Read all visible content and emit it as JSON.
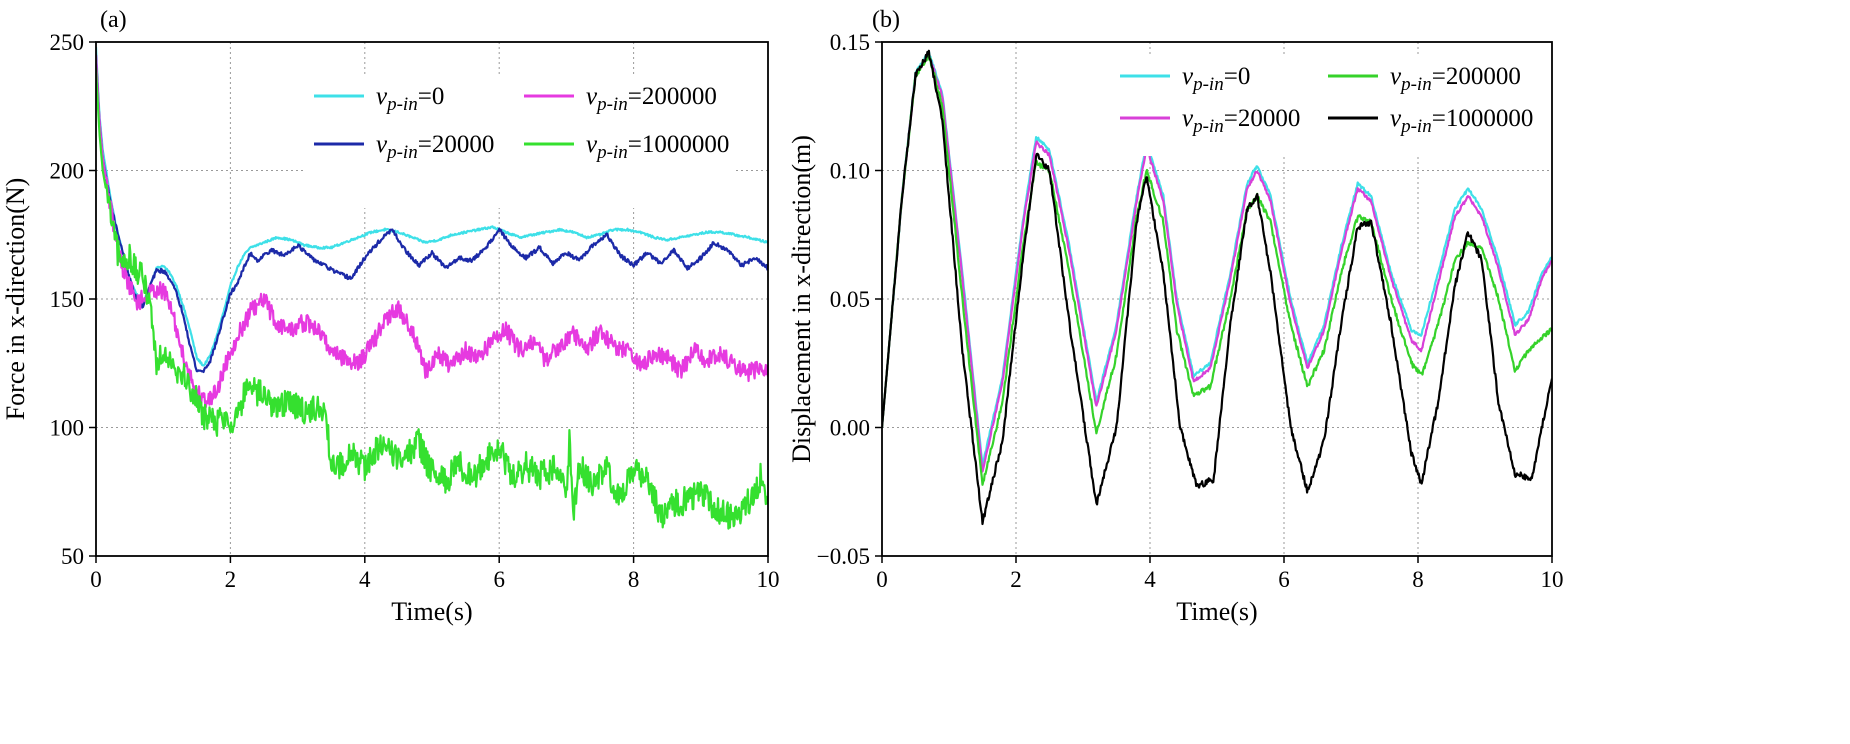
{
  "chart_data": [
    {
      "type": "line",
      "panel_label": "(a)",
      "xlabel": "Time(s)",
      "ylabel": "Force in x-direction(N)",
      "xlim": [
        0,
        10
      ],
      "ylim": [
        50,
        250
      ],
      "xticks": [
        "0",
        "2",
        "4",
        "6",
        "8",
        "10"
      ],
      "yticks": [
        "50",
        "100",
        "150",
        "200",
        "250"
      ],
      "grid": true,
      "legend_position": "top-right",
      "legend_columns": 2,
      "series": [
        {
          "name": "v_p-in=0",
          "legend_var": "v",
          "legend_sub": "p-in",
          "legend_value": "=0",
          "color": "#3ee0e8",
          "noise": 0.4,
          "x": [
            0,
            0.05,
            0.1,
            0.2,
            0.3,
            0.4,
            0.5,
            0.6,
            0.7,
            0.8,
            0.9,
            1.0,
            1.1,
            1.2,
            1.3,
            1.4,
            1.5,
            1.6,
            1.7,
            1.8,
            1.9,
            2.0,
            2.1,
            2.2,
            2.3,
            2.5,
            2.7,
            2.9,
            3.1,
            3.3,
            3.5,
            3.7,
            3.9,
            4.1,
            4.3,
            4.5,
            4.7,
            4.9,
            5.1,
            5.3,
            5.5,
            5.7,
            5.9,
            6.1,
            6.3,
            6.5,
            6.7,
            6.9,
            7.1,
            7.3,
            7.5,
            7.7,
            7.9,
            8.1,
            8.3,
            8.5,
            8.7,
            8.9,
            9.1,
            9.3,
            9.5,
            9.7,
            10.0
          ],
          "y": [
            248,
            222,
            208,
            192,
            178,
            168,
            158,
            152,
            148,
            155,
            162,
            163,
            160,
            155,
            147,
            138,
            127,
            124,
            128,
            136,
            145,
            155,
            162,
            167,
            170,
            172,
            174,
            173,
            171,
            170,
            170,
            172,
            174,
            176,
            177,
            176,
            174,
            172,
            173,
            175,
            176,
            177,
            178,
            176,
            174,
            175,
            176,
            177,
            176,
            174,
            175,
            177,
            177,
            176,
            174,
            173,
            174,
            175,
            176,
            176,
            175,
            174,
            172
          ]
        },
        {
          "name": "v_p-in=20000",
          "legend_var": "v",
          "legend_sub": "p-in",
          "legend_value": "=20000",
          "color": "#1c2aa8",
          "noise": 0.8,
          "x": [
            0,
            0.05,
            0.1,
            0.2,
            0.3,
            0.4,
            0.5,
            0.6,
            0.7,
            0.8,
            0.9,
            1.0,
            1.1,
            1.2,
            1.3,
            1.4,
            1.5,
            1.6,
            1.7,
            1.8,
            1.9,
            2.0,
            2.1,
            2.2,
            2.3,
            2.4,
            2.6,
            2.8,
            3.0,
            3.2,
            3.4,
            3.6,
            3.8,
            4.0,
            4.2,
            4.4,
            4.6,
            4.8,
            5.0,
            5.2,
            5.4,
            5.6,
            5.8,
            6.0,
            6.2,
            6.4,
            6.6,
            6.8,
            7.0,
            7.2,
            7.4,
            7.6,
            7.8,
            8.0,
            8.2,
            8.4,
            8.6,
            8.8,
            9.0,
            9.2,
            9.4,
            9.6,
            9.8,
            10.0
          ],
          "y": [
            245,
            220,
            205,
            190,
            178,
            168,
            158,
            150,
            147,
            155,
            161,
            161,
            158,
            152,
            144,
            132,
            122,
            122,
            126,
            134,
            143,
            152,
            156,
            162,
            168,
            165,
            169,
            167,
            171,
            166,
            163,
            160,
            158,
            166,
            172,
            177,
            169,
            163,
            168,
            162,
            166,
            165,
            170,
            177,
            170,
            166,
            170,
            164,
            168,
            165,
            171,
            175,
            167,
            163,
            168,
            164,
            169,
            162,
            166,
            172,
            169,
            163,
            166,
            162
          ]
        },
        {
          "name": "v_p-in=200000",
          "legend_var": "v",
          "legend_sub": "p-in",
          "legend_value": "=200000",
          "color": "#e63ae0",
          "noise": 3.5,
          "x": [
            0,
            0.05,
            0.1,
            0.2,
            0.3,
            0.4,
            0.5,
            0.6,
            0.7,
            0.8,
            0.9,
            1.0,
            1.1,
            1.2,
            1.3,
            1.4,
            1.5,
            1.6,
            1.7,
            1.8,
            1.9,
            2.0,
            2.1,
            2.2,
            2.3,
            2.4,
            2.5,
            2.7,
            2.9,
            3.1,
            3.3,
            3.5,
            3.7,
            3.9,
            4.1,
            4.3,
            4.5,
            4.7,
            4.9,
            5.1,
            5.3,
            5.5,
            5.7,
            5.9,
            6.1,
            6.3,
            6.5,
            6.7,
            6.9,
            7.1,
            7.3,
            7.5,
            7.7,
            7.9,
            8.1,
            8.3,
            8.5,
            8.7,
            8.9,
            9.1,
            9.3,
            9.5,
            9.7,
            9.9,
            10.0
          ],
          "y": [
            245,
            220,
            205,
            188,
            173,
            162,
            155,
            149,
            150,
            152,
            154,
            153,
            148,
            138,
            128,
            120,
            114,
            111,
            111,
            115,
            122,
            130,
            135,
            140,
            145,
            147,
            150,
            140,
            138,
            141,
            138,
            130,
            127,
            125,
            132,
            142,
            146,
            138,
            122,
            128,
            124,
            130,
            127,
            134,
            138,
            130,
            134,
            126,
            132,
            137,
            130,
            138,
            132,
            130,
            124,
            128,
            127,
            122,
            130,
            126,
            128,
            124,
            121,
            124,
            122
          ]
        },
        {
          "name": "v_p-in=1000000",
          "legend_var": "v",
          "legend_sub": "p-in",
          "legend_value": "=1000000",
          "color": "#35e02f",
          "noise": 5.5,
          "x": [
            0,
            0.05,
            0.1,
            0.2,
            0.3,
            0.4,
            0.5,
            0.6,
            0.7,
            0.8,
            0.9,
            1.0,
            1.1,
            1.2,
            1.3,
            1.4,
            1.5,
            1.6,
            1.7,
            1.8,
            1.9,
            2.0,
            2.1,
            2.2,
            2.3,
            2.5,
            2.7,
            2.9,
            3.1,
            3.3,
            3.4,
            3.5,
            3.6,
            3.8,
            4.0,
            4.2,
            4.4,
            4.6,
            4.8,
            5.0,
            5.2,
            5.4,
            5.6,
            5.8,
            6.0,
            6.2,
            6.4,
            6.6,
            6.8,
            7.0,
            7.05,
            7.1,
            7.2,
            7.4,
            7.6,
            7.8,
            8.0,
            8.2,
            8.4,
            8.6,
            8.8,
            9.0,
            9.2,
            9.4,
            9.6,
            9.8,
            9.9,
            10.0
          ],
          "y": [
            240,
            215,
            200,
            185,
            170,
            163,
            167,
            160,
            158,
            150,
            125,
            130,
            128,
            123,
            120,
            116,
            110,
            105,
            103,
            102,
            104,
            102,
            105,
            112,
            115,
            112,
            108,
            110,
            106,
            108,
            105,
            88,
            84,
            90,
            85,
            92,
            90,
            88,
            94,
            82,
            79,
            86,
            80,
            88,
            92,
            80,
            85,
            81,
            84,
            76,
            96,
            66,
            85,
            78,
            84,
            72,
            85,
            80,
            65,
            70,
            72,
            75,
            68,
            66,
            68,
            74,
            82,
            70
          ]
        }
      ]
    },
    {
      "type": "line",
      "panel_label": "(b)",
      "xlabel": "Time(s)",
      "ylabel": "Displacement in x-direction(m)",
      "xlim": [
        0,
        10
      ],
      "ylim": [
        -0.05,
        0.15
      ],
      "xticks": [
        "0",
        "2",
        "4",
        "6",
        "8",
        "10"
      ],
      "yticks": [
        "-0.05",
        "0.00",
        "0.05",
        "0.10",
        "0.15"
      ],
      "grid": true,
      "legend_position": "top-right",
      "legend_columns": 2,
      "series": [
        {
          "name": "v_p-in=0",
          "legend_var": "v",
          "legend_sub": "p-in",
          "legend_value": "=0",
          "color": "#3ee0e8",
          "noise": 0.0006,
          "x": [
            0,
            0.3,
            0.5,
            0.7,
            0.9,
            1.2,
            1.5,
            1.8,
            2.1,
            2.3,
            2.5,
            2.8,
            3.2,
            3.5,
            3.8,
            3.95,
            4.2,
            4.4,
            4.65,
            4.9,
            5.2,
            5.45,
            5.6,
            5.8,
            6.1,
            6.35,
            6.6,
            6.85,
            7.1,
            7.3,
            7.6,
            7.9,
            8.05,
            8.3,
            8.55,
            8.75,
            8.95,
            9.2,
            9.45,
            9.65,
            9.85,
            10.0
          ],
          "y": [
            0.0,
            0.09,
            0.138,
            0.146,
            0.13,
            0.06,
            -0.015,
            0.02,
            0.08,
            0.113,
            0.108,
            0.07,
            0.01,
            0.04,
            0.09,
            0.111,
            0.09,
            0.05,
            0.02,
            0.025,
            0.06,
            0.095,
            0.102,
            0.09,
            0.05,
            0.025,
            0.04,
            0.07,
            0.095,
            0.09,
            0.06,
            0.038,
            0.036,
            0.06,
            0.085,
            0.093,
            0.085,
            0.065,
            0.04,
            0.045,
            0.06,
            0.067
          ]
        },
        {
          "name": "v_p-in=20000",
          "legend_var": "v",
          "legend_sub": "p-in",
          "legend_value": "=20000",
          "color": "#d840d8",
          "noise": 0.0006,
          "x": [
            0,
            0.3,
            0.5,
            0.7,
            0.9,
            1.2,
            1.5,
            1.8,
            2.1,
            2.3,
            2.5,
            2.8,
            3.2,
            3.5,
            3.8,
            3.95,
            4.2,
            4.4,
            4.65,
            4.9,
            5.2,
            5.45,
            5.6,
            5.8,
            6.1,
            6.35,
            6.6,
            6.85,
            7.1,
            7.3,
            7.6,
            7.9,
            8.05,
            8.3,
            8.55,
            8.75,
            8.95,
            9.2,
            9.45,
            9.65,
            9.85,
            10.0
          ],
          "y": [
            0.0,
            0.09,
            0.137,
            0.145,
            0.129,
            0.058,
            -0.017,
            0.018,
            0.078,
            0.111,
            0.106,
            0.068,
            0.008,
            0.038,
            0.088,
            0.109,
            0.088,
            0.048,
            0.018,
            0.023,
            0.058,
            0.093,
            0.1,
            0.088,
            0.048,
            0.023,
            0.038,
            0.068,
            0.093,
            0.088,
            0.058,
            0.034,
            0.03,
            0.056,
            0.082,
            0.09,
            0.082,
            0.062,
            0.036,
            0.042,
            0.058,
            0.065
          ]
        },
        {
          "name": "v_p-in=200000",
          "legend_var": "v",
          "legend_sub": "p-in",
          "legend_value": "=200000",
          "color": "#35d22a",
          "noise": 0.001,
          "x": [
            0,
            0.3,
            0.5,
            0.7,
            0.9,
            1.2,
            1.5,
            1.8,
            2.1,
            2.3,
            2.5,
            2.8,
            3.2,
            3.5,
            3.8,
            3.95,
            4.2,
            4.4,
            4.65,
            4.9,
            5.2,
            5.45,
            5.6,
            5.8,
            6.1,
            6.35,
            6.6,
            6.85,
            7.1,
            7.3,
            7.6,
            7.9,
            8.05,
            8.3,
            8.55,
            8.75,
            8.95,
            9.2,
            9.45,
            9.65,
            9.85,
            10.0
          ],
          "y": [
            0.0,
            0.09,
            0.137,
            0.145,
            0.125,
            0.05,
            -0.022,
            0.01,
            0.07,
            0.103,
            0.1,
            0.06,
            -0.002,
            0.028,
            0.082,
            0.1,
            0.08,
            0.038,
            0.012,
            0.016,
            0.05,
            0.085,
            0.09,
            0.08,
            0.04,
            0.016,
            0.03,
            0.06,
            0.082,
            0.08,
            0.05,
            0.025,
            0.02,
            0.04,
            0.065,
            0.072,
            0.07,
            0.05,
            0.022,
            0.03,
            0.035,
            0.038
          ]
        },
        {
          "name": "v_p-in=1000000",
          "legend_var": "v",
          "legend_sub": "p-in",
          "legend_value": "=1000000",
          "color": "#000000",
          "noise": 0.0012,
          "x": [
            0,
            0.3,
            0.5,
            0.7,
            0.9,
            1.2,
            1.5,
            1.8,
            2.1,
            2.3,
            2.5,
            2.8,
            3.2,
            3.5,
            3.8,
            3.95,
            4.2,
            4.45,
            4.7,
            4.95,
            5.2,
            5.45,
            5.6,
            5.8,
            6.1,
            6.35,
            6.6,
            6.85,
            7.1,
            7.3,
            7.6,
            7.9,
            8.05,
            8.3,
            8.55,
            8.75,
            8.95,
            9.2,
            9.45,
            9.7,
            9.85,
            10.0
          ],
          "y": [
            0.0,
            0.09,
            0.137,
            0.146,
            0.12,
            0.03,
            -0.037,
            -0.005,
            0.065,
            0.106,
            0.1,
            0.04,
            -0.03,
            0.0,
            0.08,
            0.098,
            0.06,
            0.0,
            -0.023,
            -0.02,
            0.04,
            0.085,
            0.09,
            0.06,
            0.0,
            -0.025,
            -0.005,
            0.04,
            0.078,
            0.08,
            0.04,
            -0.01,
            -0.022,
            0.01,
            0.055,
            0.076,
            0.065,
            0.01,
            -0.018,
            -0.02,
            0.0,
            0.02
          ]
        }
      ]
    }
  ]
}
